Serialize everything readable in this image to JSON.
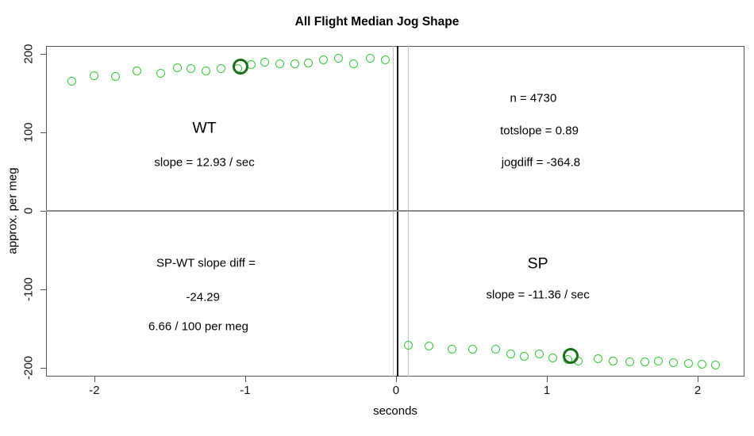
{
  "chart_data": {
    "type": "scatter",
    "title": "All Flight Median Jog Shape",
    "xlabel": "seconds",
    "ylabel": "approx. per meg",
    "xlim": [
      -2.32,
      2.31
    ],
    "ylim": [
      -211,
      210
    ],
    "x_ticks": [
      -2,
      -1,
      0,
      1,
      2
    ],
    "y_ticks": [
      -200,
      -100,
      0,
      100,
      200
    ],
    "grid": false,
    "legend": "none",
    "point_color": "#33cc33",
    "highlight_color": "#1c6e1c",
    "axis_color": "#555555",
    "series": [
      {
        "name": "WT",
        "points": [
          [
            -2.15,
            165
          ],
          [
            -2.0,
            172
          ],
          [
            -1.86,
            171
          ],
          [
            -1.72,
            178
          ],
          [
            -1.56,
            175
          ],
          [
            -1.45,
            182
          ],
          [
            -1.36,
            181
          ],
          [
            -1.26,
            178
          ],
          [
            -1.16,
            181
          ],
          [
            -1.05,
            181
          ],
          [
            -0.96,
            186
          ],
          [
            -0.87,
            189
          ],
          [
            -0.77,
            187
          ],
          [
            -0.67,
            187
          ],
          [
            -0.58,
            188
          ],
          [
            -0.48,
            192
          ],
          [
            -0.38,
            194
          ],
          [
            -0.28,
            187
          ],
          [
            -0.17,
            194
          ],
          [
            -0.07,
            192
          ]
        ]
      },
      {
        "name": "SP",
        "points": [
          [
            0.08,
            -171
          ],
          [
            0.22,
            -172
          ],
          [
            0.37,
            -176
          ],
          [
            0.51,
            -176
          ],
          [
            0.66,
            -176
          ],
          [
            0.76,
            -182
          ],
          [
            0.85,
            -185
          ],
          [
            0.95,
            -182
          ],
          [
            1.04,
            -187
          ],
          [
            1.14,
            -189
          ],
          [
            1.21,
            -191
          ],
          [
            1.34,
            -188
          ],
          [
            1.44,
            -191
          ],
          [
            1.55,
            -192
          ],
          [
            1.65,
            -192
          ],
          [
            1.74,
            -191
          ],
          [
            1.84,
            -193
          ],
          [
            1.94,
            -194
          ],
          [
            2.03,
            -195
          ],
          [
            2.12,
            -196
          ]
        ]
      }
    ],
    "highlight_points": [
      {
        "series": "WT",
        "x": -1.03,
        "y": 184
      },
      {
        "series": "SP",
        "x": 1.16,
        "y": -185
      }
    ],
    "vlines": [
      {
        "x": -0.02,
        "color": "#c4c4c4",
        "width": 1
      },
      {
        "x": 0.01,
        "color": "#1a1a1a",
        "width": 1.4
      },
      {
        "x": 0.08,
        "color": "#c4c4c4",
        "width": 1
      }
    ],
    "hlines": [
      {
        "y": 0,
        "color": "#8c8c8c",
        "width": 1.4
      }
    ],
    "annotations": [
      {
        "text": "WT",
        "x": -1.27,
        "y": 105,
        "size": "large"
      },
      {
        "text": "slope = 12.93 / sec",
        "x": -1.27,
        "y": 62,
        "size": "normal"
      },
      {
        "text": "n = 4730",
        "x": 0.91,
        "y": 143,
        "size": "normal"
      },
      {
        "text": "totslope = 0.89",
        "x": 0.95,
        "y": 102,
        "size": "normal"
      },
      {
        "text": "jogdiff = -364.8",
        "x": 0.96,
        "y": 62,
        "size": "normal"
      },
      {
        "text": "SP-WT slope diff =",
        "x": -1.26,
        "y": -67,
        "size": "normal"
      },
      {
        "text": "-24.29",
        "x": -1.28,
        "y": -110,
        "size": "normal"
      },
      {
        "text": "6.66 / 100 per meg",
        "x": -1.31,
        "y": -147,
        "size": "normal"
      },
      {
        "text": "SP",
        "x": 0.94,
        "y": -68,
        "size": "large"
      },
      {
        "text": "slope = -11.36 / sec",
        "x": 0.94,
        "y": -107,
        "size": "normal"
      }
    ]
  }
}
